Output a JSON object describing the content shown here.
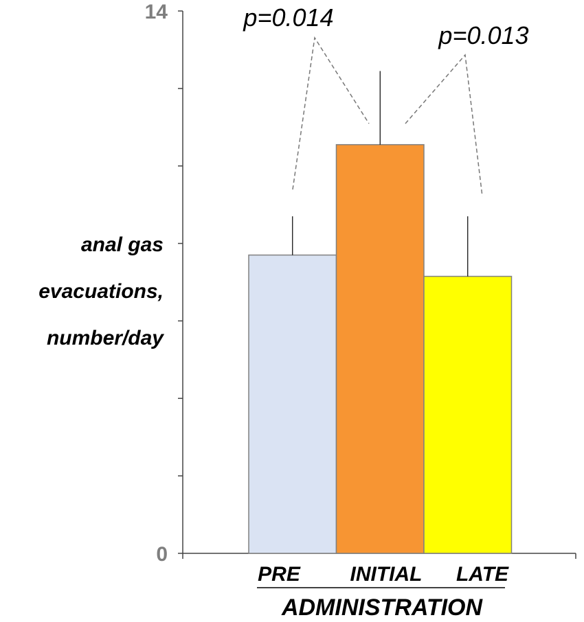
{
  "chart_data": {
    "type": "bar",
    "categories": [
      "PRE",
      "INITIAL",
      "LATE"
    ],
    "values": [
      7.7,
      10.55,
      7.15
    ],
    "errors": [
      1.0,
      1.9,
      1.55
    ],
    "colors": [
      "#dae3f3",
      "#f79533",
      "#ffff00"
    ],
    "ylim": [
      0,
      14
    ],
    "yticks": [
      0,
      2,
      4,
      6,
      8,
      10,
      12,
      14
    ],
    "ytick_labels": {
      "0": "0",
      "14": "14"
    },
    "ylabel_lines": [
      "anal gas",
      "evacuations,",
      "number/day"
    ],
    "xlabel": "ADMINISTRATION",
    "annotations": [
      {
        "text": "p=0.014",
        "from": 0,
        "to": 1
      },
      {
        "text": "p=0.013",
        "from": 1,
        "to": 2
      }
    ]
  }
}
